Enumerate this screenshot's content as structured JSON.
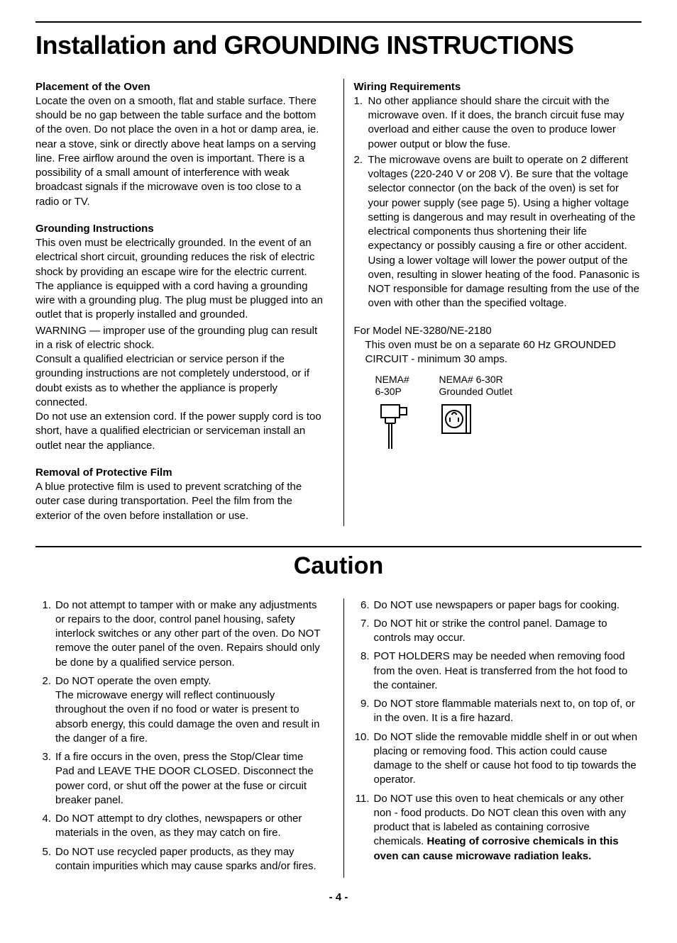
{
  "page": {
    "title": "Installation and GROUNDING INSTRUCTIONS",
    "caution_title": "Caution",
    "page_number": "- 4 -",
    "colors": {
      "text": "#000000",
      "background": "#ffffff",
      "rule": "#000000"
    },
    "fonts": {
      "body_family": "Arial, Helvetica, sans-serif",
      "body_size_pt": 11,
      "h1_size_pt": 27,
      "h2_size_pt": 26
    }
  },
  "left_sections": [
    {
      "heading": "Placement of the Oven",
      "body": "Locate the oven on a smooth, flat and stable surface. There should be no gap between the table surface and the bottom of the oven. Do not place the oven in a hot or damp area, ie. near a stove, sink or directly above heat lamps on a serving line. Free airflow around the oven is important. There is a possibility of a small amount of interference with weak broadcast signals if the microwave oven is too close to a radio or TV."
    },
    {
      "heading": "Grounding Instructions",
      "body": "This oven must be electrically grounded. In the event of an electrical short circuit, grounding reduces the risk of electric shock by providing an escape wire for the electric current. The appliance is equipped with a cord having a grounding wire with a grounding plug. The plug must be plugged into an outlet that is properly installed and grounded.",
      "warning": "WARNING — improper use of the grounding plug can result in a risk of electric shock.",
      "body2": "Consult a qualified electrician or service person if the grounding instructions are not completely understood, or if doubt exists as to whether the appliance is properly connected.",
      "body3": "Do not use an extension cord. If the power supply cord is too short, have a qualified electrician or serviceman install an outlet near the appliance."
    },
    {
      "heading": "Removal of Protective Film",
      "body": "A blue protective film is used to prevent scratching of the outer case during transportation. Peel the film from the exterior of the oven before installation or use."
    }
  ],
  "right_sections": {
    "wiring_heading": "Wiring Requirements",
    "wiring_items": [
      "No other appliance should share the circuit with the microwave oven. If it does, the branch circuit fuse may overload and either cause the oven to produce lower power output or blow the fuse.",
      "The microwave ovens are built to operate on 2 different voltages (220-240 V or 208 V). Be sure that the voltage selector connector (on the back of the oven) is set for your power supply (see page 5). Using a higher voltage setting is dangerous and may result in overheating of the electrical components thus shortening their life expectancy or possibly causing a fire or other accident. Using a lower voltage will lower the power output of the oven, resulting in slower heating of the food. Panasonic is NOT responsible for damage resulting from the use of the oven with other than the specified voltage."
    ],
    "model_line": "For Model NE-3280/NE-2180",
    "model_body": "This oven must be on a separate 60 Hz GROUNDED CIRCUIT - minimum 30 amps.",
    "plug_left_label1": "NEMA#",
    "plug_left_label2": "6-30P",
    "plug_right_label1": "NEMA# 6-30R",
    "plug_right_label2": "Grounded Outlet"
  },
  "cautions_left": [
    "Do not attempt to tamper with or make any adjustments or repairs to the door, control panel housing, safety interlock switches or any other part of the oven. Do NOT remove the outer panel of the oven. Repairs should only be done by a qualified service person.",
    "Do NOT operate the oven empty.\nThe microwave energy will reflect continuously throughout the oven if no food or water is present to absorb energy, this could damage the oven and result in the danger of a fire.",
    "If a fire occurs in the oven, press the Stop/Clear time Pad and LEAVE THE DOOR CLOSED. Disconnect the power cord, or shut off the power at the fuse or circuit breaker panel.",
    "Do NOT attempt to dry clothes, newspapers or other materials in the oven, as they may catch on fire.",
    "Do NOT use recycled paper products, as they may contain impurities which may cause sparks and/or fires."
  ],
  "cautions_right": [
    {
      "n": "6.",
      "t": "Do NOT use newspapers or paper bags for cooking."
    },
    {
      "n": "7.",
      "t": "Do NOT hit or strike the control panel. Damage to controls may occur."
    },
    {
      "n": "8.",
      "t": "POT HOLDERS may be needed when removing food from the oven. Heat is transferred from the hot food to the container."
    },
    {
      "n": "9.",
      "t": "Do NOT store flammable materials next to, on top of, or in the oven. It is a fire hazard."
    },
    {
      "n": "10.",
      "t": "Do NOT slide the removable middle shelf in or out when placing or removing food. This action could cause damage to the shelf or cause hot food to tip towards the operator."
    },
    {
      "n": "11.",
      "t_pre": "Do NOT use this oven to heat chemicals or any other non - food products. Do NOT clean this oven with any product that is labeled as containing corrosive chemicals. ",
      "t_bold": "Heating of corrosive chemicals in this oven can cause microwave radiation leaks."
    }
  ]
}
